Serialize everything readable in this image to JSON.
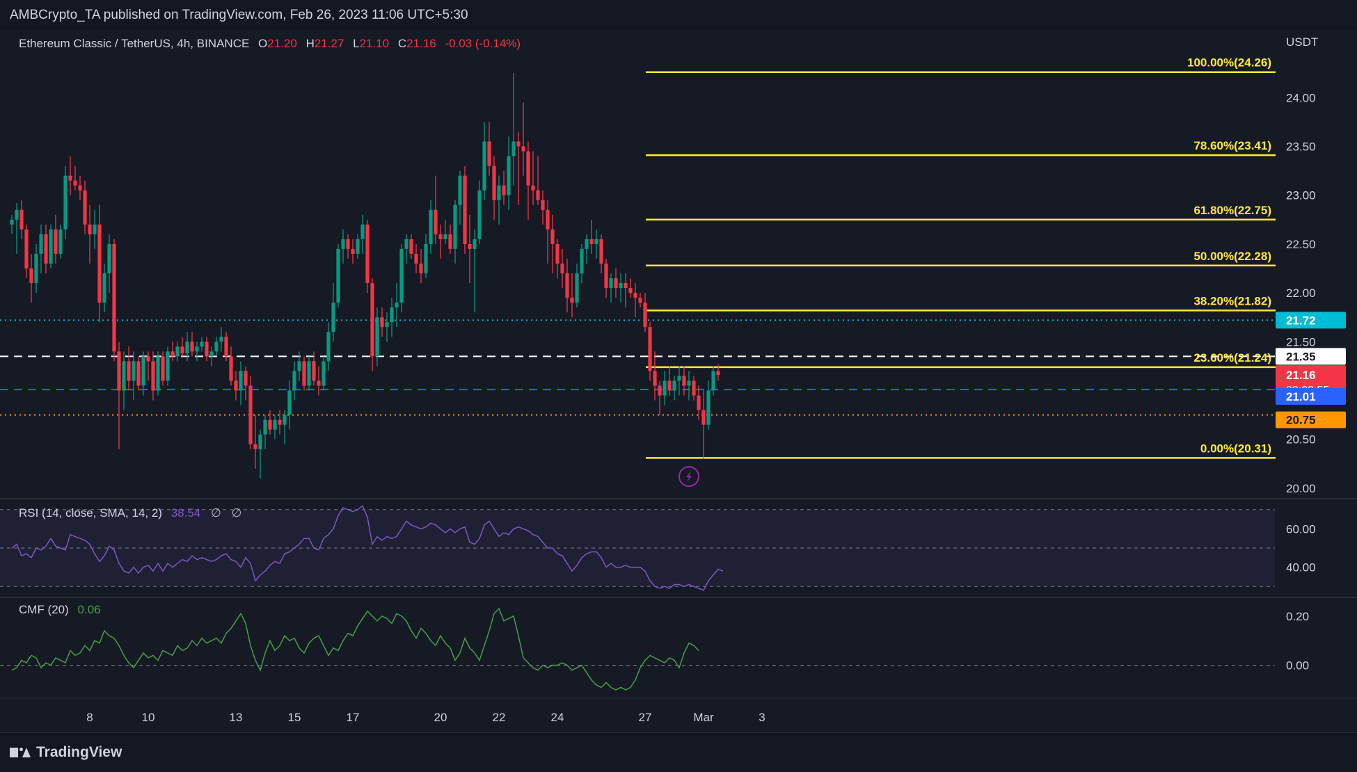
{
  "publish_info": "AMBCrypto_TA published on TradingView.com, Feb 26, 2023 11:06 UTC+5:30",
  "symbol": {
    "title": "Ethereum Classic / TetherUS, 4h, BINANCE",
    "open_label": "O",
    "open": "21.20",
    "high_label": "H",
    "high": "21.27",
    "low_label": "L",
    "low": "21.10",
    "close_label": "C",
    "close": "21.16",
    "change": "-0.03 (-0.14%)"
  },
  "currency": "USDT",
  "colors": {
    "background": "#161a25",
    "up": "#089981",
    "down": "#f23645",
    "fib": "#ffeb3b",
    "grid": "#1e222d",
    "rsi": "#7e57c2",
    "cmf": "#43a047",
    "cyan": "#00bcd4",
    "blue": "#2962ff",
    "orange": "#ff9800",
    "white": "#d1d4dc"
  },
  "rsi": {
    "label": "RSI (14, close, SMA, 14, 2)",
    "value": "38.54",
    "extra1": "∅",
    "extra2": "∅"
  },
  "cmf": {
    "label": "CMF (20)",
    "value": "0.06"
  },
  "brand": "TradingView",
  "chart_data": {
    "type": "candlestick",
    "price_axis": {
      "range": [
        19.9,
        24.6
      ],
      "ticks": [
        "24.00",
        "23.50",
        "23.00",
        "22.50",
        "22.00",
        "21.50",
        "20.50",
        "20.00"
      ]
    },
    "date_axis": {
      "ticks": [
        {
          "label": "8",
          "bar": 16
        },
        {
          "label": "10",
          "bar": 28
        },
        {
          "label": "13",
          "bar": 46
        },
        {
          "label": "15",
          "bar": 58
        },
        {
          "label": "17",
          "bar": 70
        },
        {
          "label": "20",
          "bar": 88
        },
        {
          "label": "22",
          "bar": 100
        },
        {
          "label": "24",
          "bar": 112
        },
        {
          "label": "27",
          "bar": 130
        },
        {
          "label": "Mar",
          "bar": 142
        },
        {
          "label": "3",
          "bar": 154
        }
      ]
    },
    "fibonacci": [
      {
        "label": "100.00%(24.26)",
        "price": 24.26
      },
      {
        "label": "78.60%(23.41)",
        "price": 23.41
      },
      {
        "label": "61.80%(22.75)",
        "price": 22.75
      },
      {
        "label": "50.00%(22.28)",
        "price": 22.28
      },
      {
        "label": "38.20%(21.82)",
        "price": 21.82
      },
      {
        "label": "23.60%(21.24)",
        "price": 21.24
      },
      {
        "label": "0.00%(20.31)",
        "price": 20.31
      }
    ],
    "levels": [
      {
        "label": "21.72",
        "price": 21.72,
        "color": "#00bcd4",
        "style": "dotted"
      },
      {
        "label": "21.35",
        "price": 21.35,
        "color": "#ffffff",
        "style": "dashed"
      },
      {
        "label": "21.01",
        "price": 21.01,
        "color": "#2962ff",
        "style": "dashed"
      },
      {
        "label": "20.75",
        "price": 20.75,
        "color": "#ff9800",
        "style": "dotted"
      }
    ],
    "current_price": {
      "label": "21.16",
      "price": 21.16,
      "countdown": "02:23:55"
    },
    "candles": [
      [
        22.7,
        22.8,
        22.6,
        22.75
      ],
      [
        22.75,
        22.92,
        22.4,
        22.85
      ],
      [
        22.85,
        22.95,
        22.55,
        22.65
      ],
      [
        22.65,
        22.7,
        22.15,
        22.25
      ],
      [
        22.25,
        22.4,
        21.9,
        22.1
      ],
      [
        22.1,
        22.5,
        22.0,
        22.4
      ],
      [
        22.4,
        22.7,
        22.2,
        22.6
      ],
      [
        22.6,
        22.7,
        22.2,
        22.3
      ],
      [
        22.3,
        22.7,
        22.25,
        22.65
      ],
      [
        22.65,
        22.8,
        22.3,
        22.4
      ],
      [
        22.4,
        22.7,
        22.35,
        22.65
      ],
      [
        22.65,
        23.3,
        22.55,
        23.2
      ],
      [
        23.2,
        23.4,
        23.0,
        23.15
      ],
      [
        23.15,
        23.3,
        23.05,
        23.1
      ],
      [
        23.1,
        23.2,
        22.95,
        23.05
      ],
      [
        23.05,
        23.15,
        22.6,
        22.7
      ],
      [
        22.7,
        22.9,
        22.3,
        22.6
      ],
      [
        22.6,
        22.85,
        22.45,
        22.7
      ],
      [
        22.7,
        22.9,
        21.7,
        21.9
      ],
      [
        21.9,
        22.3,
        21.8,
        22.2
      ],
      [
        22.2,
        22.6,
        22.0,
        22.5
      ],
      [
        22.5,
        22.55,
        21.3,
        21.4
      ],
      [
        21.4,
        21.5,
        20.4,
        21.0
      ],
      [
        21.0,
        21.4,
        20.8,
        21.3
      ],
      [
        21.3,
        21.45,
        21.0,
        21.1
      ],
      [
        21.1,
        21.4,
        20.9,
        21.3
      ],
      [
        21.3,
        21.35,
        21.0,
        21.05
      ],
      [
        21.05,
        21.4,
        20.95,
        21.35
      ],
      [
        21.35,
        21.4,
        21.1,
        21.3
      ],
      [
        21.3,
        21.4,
        20.9,
        21.0
      ],
      [
        21.0,
        21.4,
        20.95,
        21.35
      ],
      [
        21.35,
        21.4,
        21.05,
        21.1
      ],
      [
        21.1,
        21.45,
        21.05,
        21.4
      ],
      [
        21.4,
        21.5,
        21.3,
        21.35
      ],
      [
        21.35,
        21.5,
        21.3,
        21.45
      ],
      [
        21.45,
        21.55,
        21.35,
        21.38
      ],
      [
        21.38,
        21.6,
        21.3,
        21.5
      ],
      [
        21.5,
        21.6,
        21.35,
        21.4
      ],
      [
        21.4,
        21.5,
        21.3,
        21.45
      ],
      [
        21.45,
        21.55,
        21.4,
        21.5
      ],
      [
        21.5,
        21.55,
        21.3,
        21.35
      ],
      [
        21.35,
        21.45,
        21.25,
        21.4
      ],
      [
        21.4,
        21.55,
        21.35,
        21.5
      ],
      [
        21.5,
        21.65,
        21.4,
        21.55
      ],
      [
        21.55,
        21.6,
        21.3,
        21.35
      ],
      [
        21.35,
        21.45,
        21.05,
        21.1
      ],
      [
        21.1,
        21.2,
        20.9,
        21.0
      ],
      [
        21.0,
        21.3,
        20.85,
        21.2
      ],
      [
        21.2,
        21.25,
        20.9,
        21.05
      ],
      [
        21.05,
        21.15,
        20.4,
        20.45
      ],
      [
        20.45,
        20.75,
        20.2,
        20.4
      ],
      [
        20.4,
        20.6,
        20.1,
        20.55
      ],
      [
        20.55,
        20.75,
        20.4,
        20.7
      ],
      [
        20.7,
        20.8,
        20.55,
        20.6
      ],
      [
        20.6,
        20.75,
        20.5,
        20.7
      ],
      [
        20.7,
        20.8,
        20.55,
        20.65
      ],
      [
        20.65,
        20.8,
        20.45,
        20.75
      ],
      [
        20.75,
        21.1,
        20.6,
        21.0
      ],
      [
        21.0,
        21.3,
        20.9,
        21.2
      ],
      [
        21.2,
        21.4,
        21.1,
        21.3
      ],
      [
        21.3,
        21.35,
        21.0,
        21.05
      ],
      [
        21.05,
        21.35,
        21.0,
        21.3
      ],
      [
        21.3,
        21.4,
        21.05,
        21.1
      ],
      [
        21.1,
        21.25,
        20.95,
        21.05
      ],
      [
        21.05,
        21.35,
        21.0,
        21.3
      ],
      [
        21.3,
        21.7,
        21.2,
        21.6
      ],
      [
        21.6,
        22.1,
        21.5,
        21.9
      ],
      [
        21.9,
        22.5,
        21.85,
        22.45
      ],
      [
        22.45,
        22.65,
        22.3,
        22.55
      ],
      [
        22.55,
        22.6,
        22.35,
        22.45
      ],
      [
        22.45,
        22.55,
        22.3,
        22.4
      ],
      [
        22.4,
        22.6,
        22.35,
        22.55
      ],
      [
        22.55,
        22.8,
        22.4,
        22.7
      ],
      [
        22.7,
        22.75,
        22.0,
        22.1
      ],
      [
        22.1,
        22.15,
        21.2,
        21.35
      ],
      [
        21.35,
        21.85,
        21.25,
        21.75
      ],
      [
        21.75,
        21.85,
        21.55,
        21.65
      ],
      [
        21.65,
        21.8,
        21.5,
        21.7
      ],
      [
        21.7,
        21.95,
        21.55,
        21.85
      ],
      [
        21.85,
        22.1,
        21.65,
        21.9
      ],
      [
        21.9,
        22.5,
        21.8,
        22.45
      ],
      [
        22.45,
        22.6,
        22.3,
        22.55
      ],
      [
        22.55,
        22.6,
        22.35,
        22.4
      ],
      [
        22.4,
        22.5,
        22.2,
        22.3
      ],
      [
        22.3,
        22.45,
        22.1,
        22.2
      ],
      [
        22.2,
        22.6,
        22.15,
        22.5
      ],
      [
        22.5,
        22.95,
        22.4,
        22.85
      ],
      [
        22.85,
        23.2,
        22.5,
        22.6
      ],
      [
        22.6,
        22.7,
        22.35,
        22.55
      ],
      [
        22.55,
        22.75,
        22.5,
        22.6
      ],
      [
        22.6,
        22.7,
        22.4,
        22.45
      ],
      [
        22.45,
        22.95,
        22.3,
        22.9
      ],
      [
        22.9,
        23.25,
        22.7,
        23.2
      ],
      [
        23.2,
        23.3,
        22.4,
        22.5
      ],
      [
        22.5,
        22.8,
        22.1,
        22.45
      ],
      [
        22.45,
        22.65,
        21.8,
        22.55
      ],
      [
        22.55,
        23.15,
        22.5,
        23.05
      ],
      [
        23.05,
        23.75,
        22.95,
        23.55
      ],
      [
        23.55,
        23.75,
        23.2,
        23.3
      ],
      [
        23.3,
        23.4,
        22.75,
        22.95
      ],
      [
        22.95,
        23.2,
        22.7,
        23.1
      ],
      [
        23.1,
        23.25,
        22.9,
        23.0
      ],
      [
        23.0,
        23.6,
        22.85,
        23.4
      ],
      [
        23.4,
        24.25,
        23.1,
        23.55
      ],
      [
        23.55,
        23.65,
        22.9,
        23.5
      ],
      [
        23.5,
        23.95,
        23.2,
        23.45
      ],
      [
        23.45,
        23.55,
        22.75,
        23.1
      ],
      [
        23.1,
        23.45,
        22.9,
        23.05
      ],
      [
        23.05,
        23.4,
        22.9,
        22.95
      ],
      [
        22.95,
        23.05,
        22.7,
        22.85
      ],
      [
        22.85,
        22.95,
        22.3,
        22.65
      ],
      [
        22.65,
        22.8,
        22.2,
        22.5
      ],
      [
        22.5,
        22.55,
        22.15,
        22.3
      ],
      [
        22.3,
        22.45,
        22.05,
        22.2
      ],
      [
        22.2,
        22.35,
        21.8,
        21.95
      ],
      [
        21.95,
        22.2,
        21.75,
        21.9
      ],
      [
        21.9,
        22.3,
        21.85,
        22.2
      ],
      [
        22.2,
        22.5,
        22.1,
        22.45
      ],
      [
        22.45,
        22.6,
        22.3,
        22.55
      ],
      [
        22.55,
        22.75,
        22.4,
        22.5
      ],
      [
        22.5,
        22.65,
        22.35,
        22.55
      ],
      [
        22.55,
        22.6,
        22.2,
        22.3
      ],
      [
        22.3,
        22.35,
        21.95,
        22.05
      ],
      [
        22.05,
        22.2,
        21.9,
        22.15
      ],
      [
        22.15,
        22.25,
        21.95,
        22.05
      ],
      [
        22.05,
        22.2,
        21.9,
        22.1
      ],
      [
        22.1,
        22.2,
        21.85,
        22.05
      ],
      [
        22.05,
        22.15,
        21.95,
        22.0
      ],
      [
        22.0,
        22.1,
        21.75,
        21.95
      ],
      [
        21.95,
        22.0,
        21.85,
        21.9
      ],
      [
        21.9,
        22.0,
        21.6,
        21.65
      ],
      [
        21.65,
        21.7,
        21.1,
        21.2
      ],
      [
        21.2,
        21.4,
        20.9,
        21.05
      ],
      [
        21.05,
        21.1,
        20.75,
        20.95
      ],
      [
        20.95,
        21.2,
        20.85,
        21.1
      ],
      [
        21.1,
        21.25,
        20.95,
        21.0
      ],
      [
        21.0,
        21.15,
        20.9,
        21.1
      ],
      [
        21.1,
        21.25,
        20.95,
        21.15
      ],
      [
        21.15,
        21.25,
        20.95,
        21.05
      ],
      [
        21.05,
        21.2,
        20.9,
        21.1
      ],
      [
        21.1,
        21.15,
        20.9,
        20.95
      ],
      [
        20.95,
        21.05,
        20.7,
        20.8
      ],
      [
        20.8,
        21.0,
        20.3,
        20.65
      ],
      [
        20.65,
        21.1,
        20.6,
        21.0
      ],
      [
        21.0,
        21.25,
        20.95,
        21.2
      ],
      [
        21.2,
        21.27,
        21.1,
        21.16
      ]
    ],
    "rsi_series": {
      "range": [
        25,
        75
      ],
      "ticks": [
        "60.00",
        "40.00"
      ],
      "bands": [
        30,
        50,
        70
      ],
      "values": [
        50,
        52,
        46,
        47,
        45,
        50,
        49,
        51,
        55,
        51,
        50,
        49,
        57,
        56,
        55,
        54,
        52,
        47,
        43,
        46,
        51,
        49,
        42,
        38,
        37,
        40,
        37,
        40,
        41,
        38,
        42,
        38,
        42,
        40,
        42,
        44,
        43,
        46,
        44,
        45,
        44,
        43,
        44,
        46,
        47,
        44,
        43,
        40,
        45,
        42,
        33,
        36,
        38,
        41,
        43,
        42,
        47,
        48,
        50,
        52,
        55,
        55,
        50,
        49,
        55,
        57,
        60,
        67,
        71,
        70,
        69,
        70,
        72,
        66,
        52,
        56,
        54,
        56,
        55,
        56,
        60,
        64,
        62,
        61,
        60,
        61,
        63,
        62,
        60,
        58,
        60,
        58,
        60,
        61,
        53,
        52,
        55,
        62,
        64,
        60,
        56,
        58,
        57,
        60,
        61,
        60,
        59,
        57,
        56,
        53,
        50,
        50,
        47,
        46,
        42,
        38,
        41,
        45,
        47,
        48,
        48,
        45,
        40,
        42,
        40,
        40,
        41,
        40,
        40,
        40,
        38,
        33,
        30,
        29,
        30,
        29,
        31,
        31,
        30,
        31,
        30,
        29,
        28,
        33,
        36,
        39,
        38
      ]
    },
    "cmf_series": {
      "range": [
        -0.12,
        0.27
      ],
      "ticks": [
        "0.20",
        "0.00"
      ],
      "zero": 0,
      "values": [
        -0.02,
        -0.01,
        0.02,
        0.01,
        0.04,
        0.03,
        -0.01,
        0.01,
        0.0,
        0.03,
        0.02,
        0.01,
        0.06,
        0.04,
        0.05,
        0.08,
        0.06,
        0.1,
        0.09,
        0.14,
        0.12,
        0.11,
        0.08,
        0.04,
        0.01,
        -0.01,
        0.02,
        0.05,
        0.03,
        0.04,
        0.02,
        0.06,
        0.05,
        0.04,
        0.08,
        0.06,
        0.07,
        0.1,
        0.08,
        0.11,
        0.09,
        0.1,
        0.11,
        0.09,
        0.13,
        0.15,
        0.18,
        0.21,
        0.17,
        0.08,
        0.02,
        -0.02,
        0.05,
        0.1,
        0.06,
        0.08,
        0.12,
        0.1,
        0.11,
        0.07,
        0.05,
        0.09,
        0.11,
        0.12,
        0.08,
        0.04,
        0.07,
        0.06,
        0.1,
        0.13,
        0.12,
        0.16,
        0.19,
        0.22,
        0.2,
        0.18,
        0.2,
        0.19,
        0.17,
        0.21,
        0.2,
        0.18,
        0.14,
        0.11,
        0.15,
        0.13,
        0.1,
        0.08,
        0.12,
        0.09,
        0.07,
        0.02,
        0.05,
        0.11,
        0.07,
        0.05,
        0.02,
        0.08,
        0.14,
        0.21,
        0.23,
        0.18,
        0.19,
        0.2,
        0.12,
        0.03,
        0.01,
        -0.01,
        -0.02,
        0.0,
        -0.01,
        0.0,
        0.0,
        0.01,
        0.0,
        -0.02,
        -0.01,
        0.0,
        -0.03,
        -0.06,
        -0.08,
        -0.09,
        -0.07,
        -0.09,
        -0.1,
        -0.09,
        -0.1,
        -0.09,
        -0.06,
        -0.01,
        0.02,
        0.04,
        0.03,
        0.02,
        0.01,
        0.03,
        0.02,
        -0.01,
        0.05,
        0.09,
        0.08,
        0.06
      ]
    }
  }
}
